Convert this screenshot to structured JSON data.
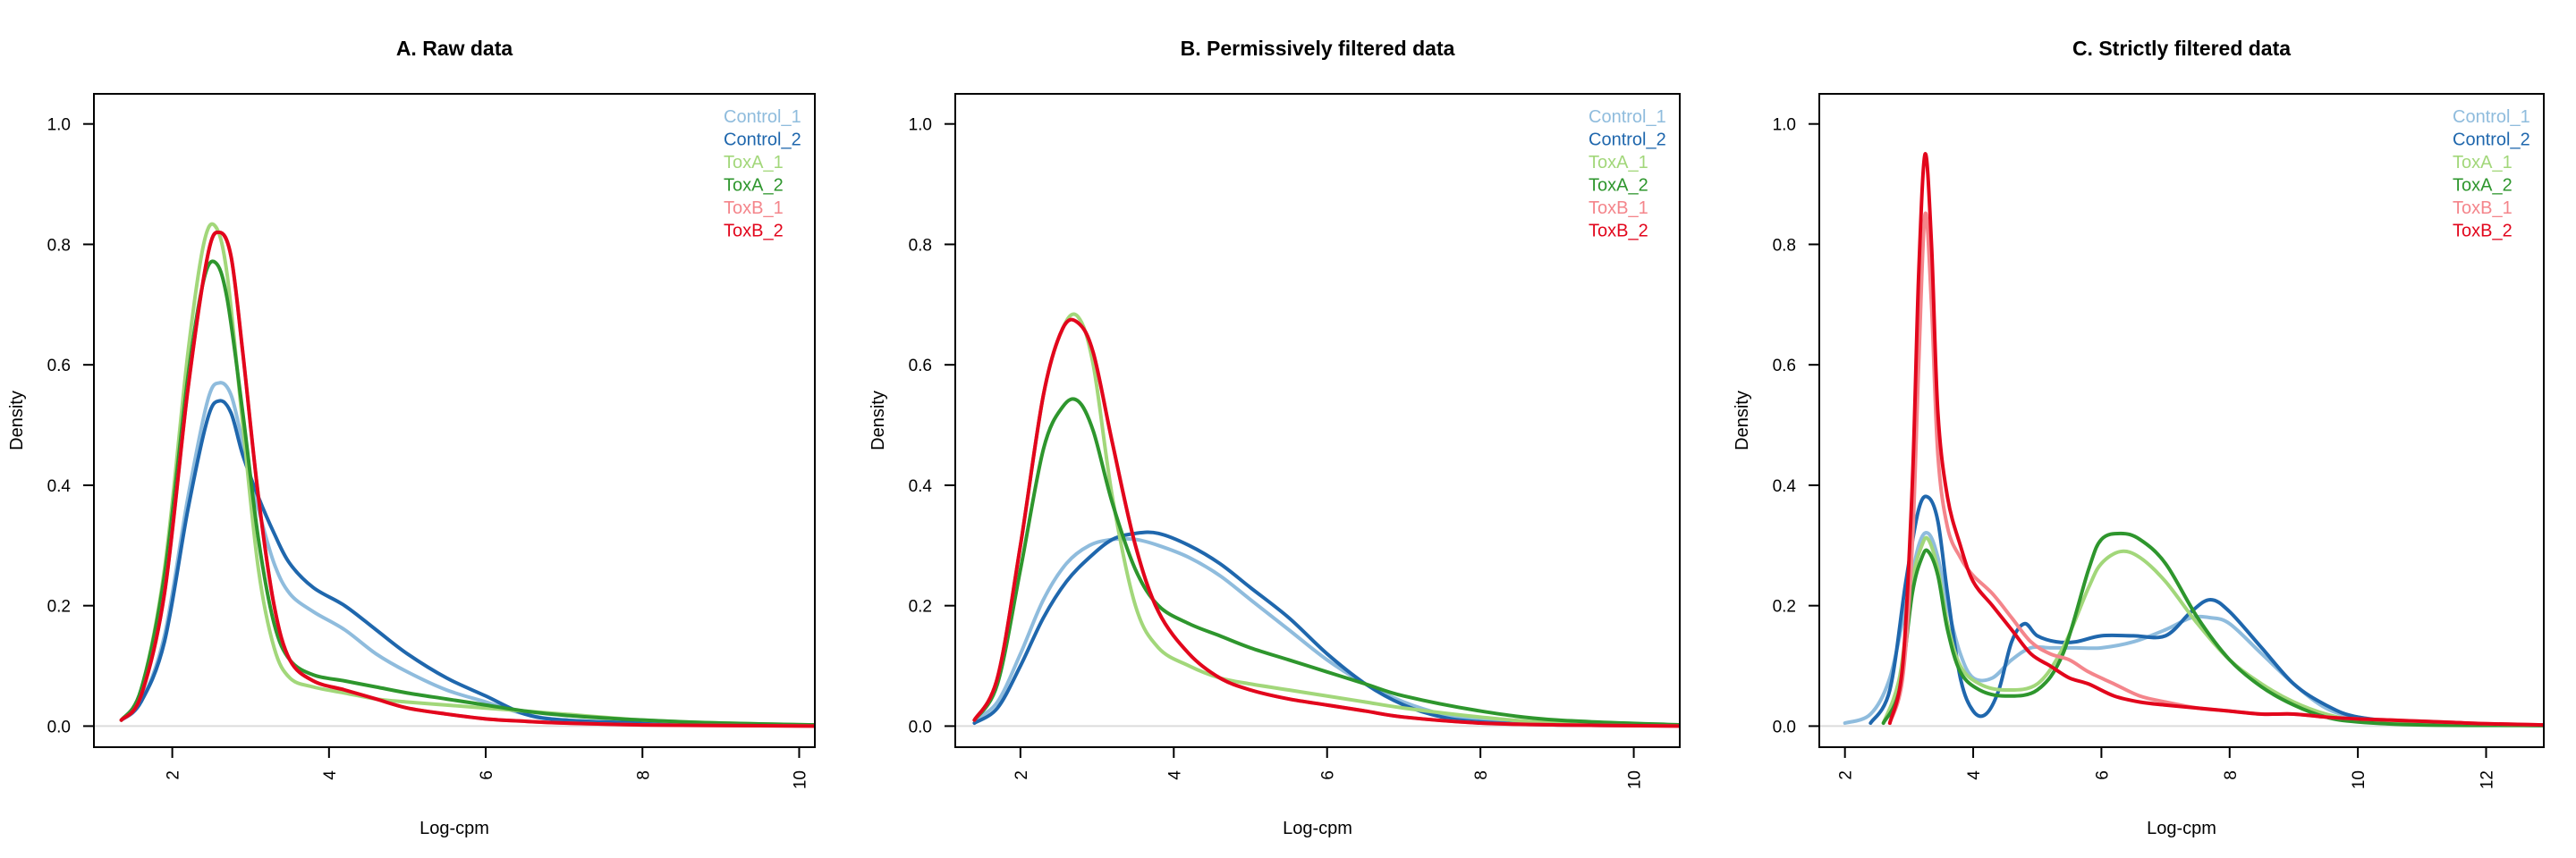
{
  "colors": {
    "Control_1": "#8fbcdd",
    "Control_2": "#1f67ad",
    "ToxA_1": "#a2d77a",
    "ToxA_2": "#2e962d",
    "ToxB_1": "#f4858b",
    "ToxB_2": "#e2061c"
  },
  "chart_data": [
    {
      "type": "line",
      "title": "A. Raw data",
      "xlabel": "Log-cpm",
      "ylabel": "Density",
      "xlim": [
        1.0,
        10.2
      ],
      "ylim": [
        -0.035,
        1.05
      ],
      "xticks": [
        2,
        4,
        6,
        8,
        10
      ],
      "yticks": [
        0.0,
        0.2,
        0.4,
        0.6,
        0.8,
        1.0
      ],
      "xtick_labels": [
        "2",
        "4",
        "6",
        "8",
        "10"
      ],
      "ytick_labels": [
        "0.0",
        "0.2",
        "0.4",
        "0.6",
        "0.8",
        "1.0"
      ],
      "grid": false,
      "legend_position": "top-right",
      "series": [
        {
          "name": "Control_1",
          "x": [
            1.35,
            1.6,
            1.9,
            2.2,
            2.45,
            2.6,
            2.75,
            2.9,
            3.1,
            3.3,
            3.5,
            3.8,
            4.2,
            4.6,
            5.0,
            5.5,
            6.0,
            6.5,
            7.0,
            8.0,
            9.0,
            10.2
          ],
          "y": [
            0.01,
            0.04,
            0.15,
            0.38,
            0.54,
            0.57,
            0.55,
            0.47,
            0.36,
            0.27,
            0.22,
            0.19,
            0.16,
            0.12,
            0.09,
            0.06,
            0.04,
            0.02,
            0.01,
            0.005,
            0.002,
            0.001
          ]
        },
        {
          "name": "Control_2",
          "x": [
            1.35,
            1.6,
            1.9,
            2.2,
            2.45,
            2.6,
            2.75,
            2.9,
            3.1,
            3.3,
            3.5,
            3.8,
            4.2,
            4.6,
            5.0,
            5.5,
            6.0,
            6.5,
            7.0,
            8.0,
            9.0,
            10.2
          ],
          "y": [
            0.01,
            0.04,
            0.14,
            0.36,
            0.51,
            0.54,
            0.52,
            0.45,
            0.38,
            0.32,
            0.27,
            0.23,
            0.2,
            0.16,
            0.12,
            0.08,
            0.05,
            0.02,
            0.01,
            0.005,
            0.002,
            0.001
          ]
        },
        {
          "name": "ToxA_1",
          "x": [
            1.35,
            1.6,
            1.9,
            2.2,
            2.4,
            2.55,
            2.7,
            2.9,
            3.1,
            3.3,
            3.5,
            3.8,
            4.2,
            4.6,
            5.0,
            5.5,
            6.0,
            6.5,
            7.0,
            8.0,
            9.0,
            10.2
          ],
          "y": [
            0.01,
            0.06,
            0.26,
            0.62,
            0.8,
            0.83,
            0.75,
            0.5,
            0.26,
            0.13,
            0.08,
            0.065,
            0.055,
            0.045,
            0.04,
            0.035,
            0.03,
            0.025,
            0.02,
            0.01,
            0.005,
            0.002
          ]
        },
        {
          "name": "ToxA_2",
          "x": [
            1.35,
            1.6,
            1.9,
            2.2,
            2.4,
            2.55,
            2.7,
            2.9,
            3.1,
            3.3,
            3.5,
            3.8,
            4.2,
            4.6,
            5.0,
            5.5,
            6.0,
            6.5,
            7.0,
            8.0,
            9.0,
            10.2
          ],
          "y": [
            0.01,
            0.06,
            0.25,
            0.58,
            0.74,
            0.77,
            0.71,
            0.52,
            0.31,
            0.17,
            0.11,
            0.085,
            0.075,
            0.065,
            0.055,
            0.045,
            0.035,
            0.025,
            0.018,
            0.01,
            0.005,
            0.002
          ]
        },
        {
          "name": "ToxB_1",
          "x": [
            1.35,
            1.6,
            1.9,
            2.2,
            2.45,
            2.6,
            2.75,
            2.9,
            3.1,
            3.3,
            3.5,
            3.8,
            4.2,
            4.6,
            5.0,
            5.5,
            6.0,
            6.5,
            7.0,
            8.0,
            9.0,
            10.2
          ],
          "y": [
            0.01,
            0.05,
            0.22,
            0.56,
            0.78,
            0.82,
            0.78,
            0.62,
            0.38,
            0.2,
            0.11,
            0.075,
            0.06,
            0.045,
            0.03,
            0.02,
            0.012,
            0.008,
            0.005,
            0.002,
            0.001,
            0.0
          ]
        },
        {
          "name": "ToxB_2",
          "x": [
            1.35,
            1.6,
            1.9,
            2.2,
            2.45,
            2.6,
            2.75,
            2.9,
            3.1,
            3.3,
            3.5,
            3.8,
            4.2,
            4.6,
            5.0,
            5.5,
            6.0,
            6.5,
            7.0,
            8.0,
            9.0,
            10.2
          ],
          "y": [
            0.01,
            0.05,
            0.22,
            0.56,
            0.78,
            0.82,
            0.78,
            0.62,
            0.38,
            0.2,
            0.11,
            0.075,
            0.06,
            0.045,
            0.03,
            0.02,
            0.012,
            0.008,
            0.005,
            0.002,
            0.001,
            0.0
          ]
        }
      ]
    },
    {
      "type": "line",
      "title": "B. Permissively filtered data",
      "xlabel": "Log-cpm",
      "ylabel": "Density",
      "xlim": [
        1.15,
        10.6
      ],
      "ylim": [
        -0.035,
        1.05
      ],
      "xticks": [
        2,
        4,
        6,
        8,
        10
      ],
      "yticks": [
        0.0,
        0.2,
        0.4,
        0.6,
        0.8,
        1.0
      ],
      "xtick_labels": [
        "2",
        "4",
        "6",
        "8",
        "10"
      ],
      "ytick_labels": [
        "0.0",
        "0.2",
        "0.4",
        "0.6",
        "0.8",
        "1.0"
      ],
      "grid": false,
      "legend_position": "top-right",
      "series": [
        {
          "name": "Control_1",
          "x": [
            1.4,
            1.7,
            2.0,
            2.3,
            2.6,
            2.9,
            3.2,
            3.5,
            3.8,
            4.2,
            4.6,
            5.0,
            5.5,
            6.0,
            6.5,
            7.0,
            7.5,
            8.0,
            9.0,
            10.6
          ],
          "y": [
            0.01,
            0.04,
            0.12,
            0.21,
            0.27,
            0.3,
            0.31,
            0.31,
            0.3,
            0.28,
            0.25,
            0.21,
            0.16,
            0.11,
            0.07,
            0.04,
            0.02,
            0.01,
            0.003,
            0.001
          ]
        },
        {
          "name": "Control_2",
          "x": [
            1.4,
            1.7,
            2.0,
            2.3,
            2.6,
            2.9,
            3.2,
            3.5,
            3.8,
            4.2,
            4.6,
            5.0,
            5.5,
            6.0,
            6.5,
            7.0,
            7.5,
            8.0,
            9.0,
            10.6
          ],
          "y": [
            0.005,
            0.03,
            0.1,
            0.18,
            0.24,
            0.28,
            0.31,
            0.32,
            0.32,
            0.3,
            0.27,
            0.23,
            0.18,
            0.12,
            0.07,
            0.035,
            0.015,
            0.007,
            0.002,
            0.001
          ]
        },
        {
          "name": "ToxA_1",
          "x": [
            1.4,
            1.7,
            2.0,
            2.3,
            2.55,
            2.75,
            2.95,
            3.2,
            3.5,
            3.8,
            4.2,
            4.6,
            5.0,
            5.5,
            6.0,
            6.5,
            7.0,
            8.0,
            9.0,
            10.6
          ],
          "y": [
            0.01,
            0.08,
            0.3,
            0.55,
            0.66,
            0.68,
            0.6,
            0.38,
            0.2,
            0.13,
            0.1,
            0.08,
            0.07,
            0.06,
            0.05,
            0.04,
            0.03,
            0.015,
            0.005,
            0.001
          ]
        },
        {
          "name": "ToxA_2",
          "x": [
            1.4,
            1.7,
            2.0,
            2.3,
            2.55,
            2.75,
            2.95,
            3.2,
            3.5,
            3.8,
            4.2,
            4.6,
            5.0,
            5.5,
            6.0,
            6.5,
            7.0,
            8.0,
            9.0,
            10.6
          ],
          "y": [
            0.01,
            0.07,
            0.26,
            0.46,
            0.53,
            0.54,
            0.49,
            0.37,
            0.26,
            0.2,
            0.17,
            0.15,
            0.13,
            0.11,
            0.09,
            0.07,
            0.05,
            0.025,
            0.01,
            0.002
          ]
        },
        {
          "name": "ToxB_1",
          "x": [
            1.4,
            1.7,
            2.0,
            2.3,
            2.55,
            2.75,
            2.95,
            3.2,
            3.5,
            3.8,
            4.2,
            4.6,
            5.0,
            5.5,
            6.0,
            6.5,
            7.0,
            8.0,
            9.0,
            10.6
          ],
          "y": [
            0.01,
            0.08,
            0.3,
            0.55,
            0.66,
            0.67,
            0.62,
            0.47,
            0.3,
            0.19,
            0.12,
            0.08,
            0.06,
            0.045,
            0.035,
            0.025,
            0.015,
            0.005,
            0.002,
            0.0
          ]
        },
        {
          "name": "ToxB_2",
          "x": [
            1.4,
            1.7,
            2.0,
            2.3,
            2.55,
            2.75,
            2.95,
            3.2,
            3.5,
            3.8,
            4.2,
            4.6,
            5.0,
            5.5,
            6.0,
            6.5,
            7.0,
            8.0,
            9.0,
            10.6
          ],
          "y": [
            0.01,
            0.08,
            0.3,
            0.55,
            0.66,
            0.67,
            0.62,
            0.47,
            0.3,
            0.19,
            0.12,
            0.08,
            0.06,
            0.045,
            0.035,
            0.025,
            0.015,
            0.005,
            0.002,
            0.0
          ]
        }
      ]
    },
    {
      "type": "line",
      "title": "C. Strictly filtered data",
      "xlabel": "Log-cpm",
      "ylabel": "Density",
      "xlim": [
        1.6,
        12.9
      ],
      "ylim": [
        -0.035,
        1.05
      ],
      "xticks": [
        2,
        4,
        6,
        8,
        10,
        12
      ],
      "yticks": [
        0.0,
        0.2,
        0.4,
        0.6,
        0.8,
        1.0
      ],
      "xtick_labels": [
        "2",
        "4",
        "6",
        "8",
        "10",
        "12"
      ],
      "ytick_labels": [
        "0.0",
        "0.2",
        "0.4",
        "0.6",
        "0.8",
        "1.0"
      ],
      "grid": false,
      "legend_position": "top-right",
      "series": [
        {
          "name": "Control_1",
          "x": [
            2.0,
            2.4,
            2.7,
            2.95,
            3.15,
            3.3,
            3.45,
            3.6,
            3.8,
            4.0,
            4.3,
            4.6,
            4.9,
            5.2,
            5.6,
            6.0,
            6.5,
            7.0,
            7.4,
            7.7,
            8.0,
            8.5,
            9.0,
            9.5,
            10.0,
            11.0,
            12.9
          ],
          "y": [
            0.005,
            0.02,
            0.08,
            0.2,
            0.3,
            0.32,
            0.28,
            0.2,
            0.12,
            0.08,
            0.08,
            0.11,
            0.13,
            0.13,
            0.13,
            0.13,
            0.14,
            0.16,
            0.18,
            0.18,
            0.17,
            0.12,
            0.07,
            0.03,
            0.015,
            0.005,
            0.001
          ]
        },
        {
          "name": "Control_2",
          "x": [
            2.4,
            2.7,
            2.95,
            3.15,
            3.3,
            3.45,
            3.6,
            3.8,
            4.0,
            4.2,
            4.4,
            4.6,
            4.8,
            5.0,
            5.3,
            5.6,
            6.0,
            6.5,
            7.0,
            7.4,
            7.7,
            8.0,
            8.5,
            9.0,
            9.5,
            10.0,
            11.0,
            12.9
          ],
          "y": [
            0.005,
            0.06,
            0.24,
            0.36,
            0.38,
            0.34,
            0.22,
            0.08,
            0.025,
            0.02,
            0.06,
            0.14,
            0.17,
            0.15,
            0.14,
            0.14,
            0.15,
            0.15,
            0.15,
            0.19,
            0.21,
            0.19,
            0.13,
            0.07,
            0.035,
            0.015,
            0.005,
            0.001
          ]
        },
        {
          "name": "ToxA_1",
          "x": [
            2.6,
            2.85,
            3.05,
            3.2,
            3.3,
            3.45,
            3.6,
            3.8,
            4.1,
            4.5,
            5.0,
            5.4,
            5.8,
            6.0,
            6.3,
            6.6,
            7.0,
            7.5,
            8.0,
            8.5,
            9.0,
            9.5,
            10.0,
            11.0,
            12.9
          ],
          "y": [
            0.005,
            0.08,
            0.24,
            0.3,
            0.31,
            0.26,
            0.17,
            0.1,
            0.07,
            0.06,
            0.07,
            0.13,
            0.23,
            0.27,
            0.29,
            0.28,
            0.24,
            0.17,
            0.11,
            0.07,
            0.04,
            0.02,
            0.01,
            0.003,
            0.001
          ]
        },
        {
          "name": "ToxA_2",
          "x": [
            2.6,
            2.85,
            3.05,
            3.2,
            3.3,
            3.45,
            3.6,
            3.8,
            4.1,
            4.5,
            5.0,
            5.4,
            5.8,
            6.0,
            6.3,
            6.6,
            7.0,
            7.5,
            8.0,
            8.5,
            9.0,
            9.5,
            10.0,
            11.0,
            12.9
          ],
          "y": [
            0.005,
            0.06,
            0.22,
            0.28,
            0.29,
            0.25,
            0.16,
            0.09,
            0.06,
            0.05,
            0.06,
            0.12,
            0.26,
            0.31,
            0.32,
            0.31,
            0.27,
            0.18,
            0.11,
            0.065,
            0.035,
            0.015,
            0.007,
            0.002,
            0.001
          ]
        },
        {
          "name": "ToxB_1",
          "x": [
            2.7,
            2.9,
            3.05,
            3.15,
            3.25,
            3.35,
            3.45,
            3.6,
            3.8,
            4.0,
            4.3,
            4.6,
            4.9,
            5.2,
            5.5,
            5.8,
            6.2,
            6.6,
            7.0,
            7.5,
            8.0,
            8.5,
            9.0,
            9.5,
            10.0,
            10.5,
            11.0,
            11.5,
            12.0,
            12.9
          ],
          "y": [
            0.005,
            0.08,
            0.3,
            0.6,
            0.85,
            0.7,
            0.45,
            0.33,
            0.28,
            0.25,
            0.22,
            0.18,
            0.14,
            0.12,
            0.11,
            0.09,
            0.07,
            0.05,
            0.04,
            0.03,
            0.025,
            0.02,
            0.02,
            0.015,
            0.012,
            0.01,
            0.008,
            0.006,
            0.004,
            0.002
          ]
        },
        {
          "name": "ToxB_2",
          "x": [
            2.7,
            2.9,
            3.05,
            3.15,
            3.25,
            3.35,
            3.45,
            3.6,
            3.8,
            4.0,
            4.3,
            4.6,
            4.9,
            5.2,
            5.5,
            5.8,
            6.2,
            6.6,
            7.0,
            7.5,
            8.0,
            8.5,
            9.0,
            9.5,
            10.0,
            10.5,
            11.0,
            11.5,
            12.0,
            12.9
          ],
          "y": [
            0.005,
            0.1,
            0.4,
            0.75,
            0.95,
            0.8,
            0.52,
            0.38,
            0.3,
            0.24,
            0.2,
            0.16,
            0.12,
            0.1,
            0.08,
            0.07,
            0.05,
            0.04,
            0.035,
            0.03,
            0.025,
            0.02,
            0.02,
            0.015,
            0.012,
            0.01,
            0.008,
            0.006,
            0.004,
            0.002
          ]
        }
      ]
    }
  ]
}
